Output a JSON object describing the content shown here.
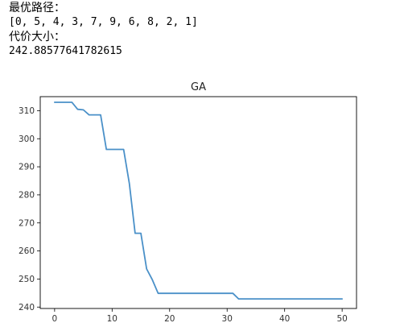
{
  "output": {
    "best_path_label": "最优路径：",
    "best_path_value": "[0, 5, 4, 3, 7, 9, 6, 8, 2, 1]",
    "cost_label": "代价大小：",
    "cost_value": "242.88577641782615"
  },
  "chart_data": {
    "type": "line",
    "title": "GA",
    "xlabel": "",
    "ylabel": "",
    "xlim": [
      -2.5,
      52.5
    ],
    "ylim": [
      239.5,
      315
    ],
    "xticks": [
      0,
      10,
      20,
      30,
      40,
      50
    ],
    "yticks": [
      240,
      250,
      260,
      270,
      280,
      290,
      300,
      310
    ],
    "grid": false,
    "line_color": "#4a90c8",
    "series": [
      {
        "x": [
          0,
          1,
          2,
          3,
          4,
          5,
          6,
          7,
          8,
          9,
          10,
          11,
          12,
          13,
          14,
          15,
          16,
          17,
          18,
          19,
          20,
          21,
          22,
          23,
          24,
          25,
          26,
          27,
          28,
          29,
          30,
          31,
          32,
          33,
          34,
          35,
          36,
          37,
          38,
          39,
          40,
          41,
          42,
          43,
          44,
          45,
          46,
          47,
          48,
          49,
          50
        ],
        "y": [
          313,
          313,
          313,
          313,
          310.5,
          310.3,
          308.5,
          308.5,
          308.5,
          296.2,
          296.2,
          296.2,
          296.2,
          284,
          266.3,
          266.3,
          253.6,
          249.7,
          244.9,
          244.9,
          244.9,
          244.9,
          244.9,
          244.9,
          244.9,
          244.9,
          244.9,
          244.9,
          244.9,
          244.9,
          244.9,
          244.9,
          242.9,
          242.9,
          242.9,
          242.9,
          242.9,
          242.9,
          242.9,
          242.9,
          242.9,
          242.9,
          242.9,
          242.9,
          242.9,
          242.9,
          242.9,
          242.9,
          242.9,
          242.9,
          242.9
        ]
      }
    ]
  }
}
